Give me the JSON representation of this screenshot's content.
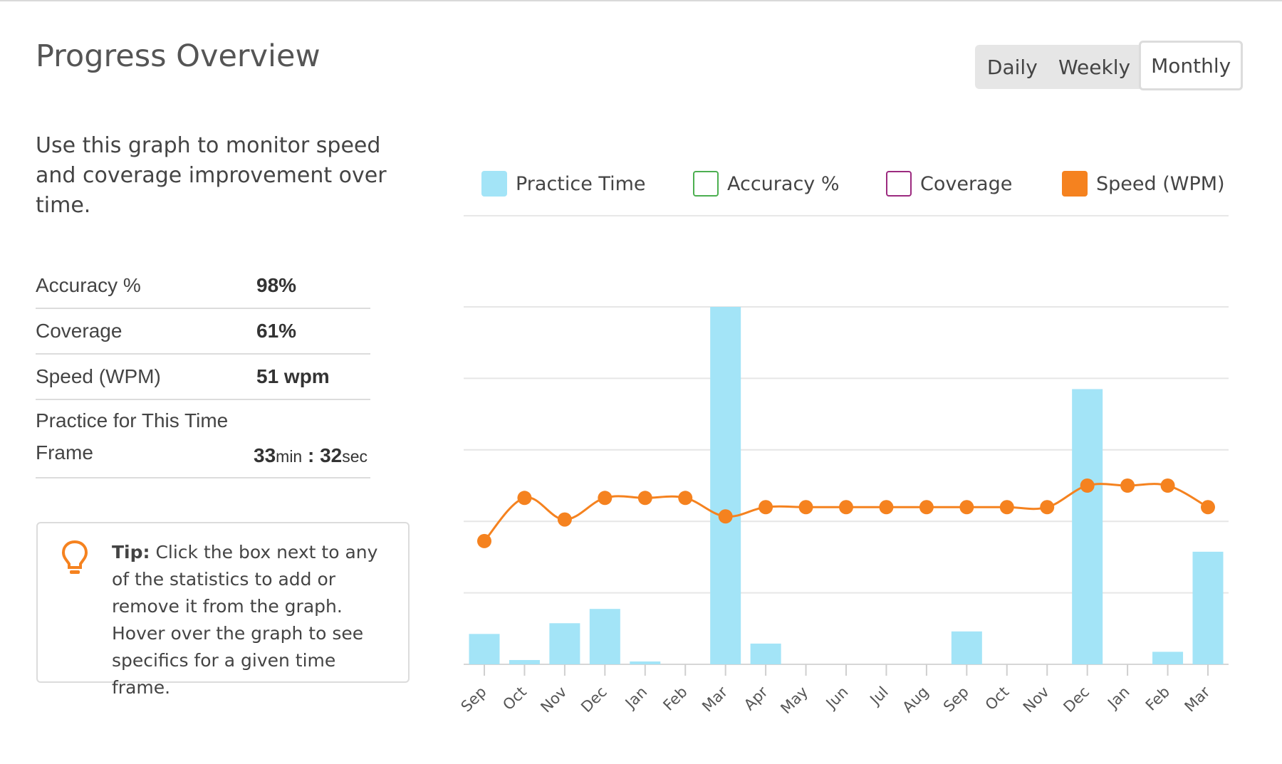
{
  "header": {
    "title": "Progress Overview"
  },
  "range_toggle": {
    "options": [
      "Daily",
      "Weekly",
      "Monthly"
    ],
    "selected": "Monthly"
  },
  "intro_text": "Use this graph to monitor speed and coverage improvement over time.",
  "stats": [
    {
      "label": "Accuracy %",
      "value": "98%"
    },
    {
      "label": "Coverage",
      "value": "61%"
    },
    {
      "label": "Speed (WPM)",
      "value": "51 wpm"
    }
  ],
  "practice": {
    "label": "Practice for This Time Frame",
    "minutes": "33",
    "min_unit": "min",
    "separator": " : ",
    "seconds": "32",
    "sec_unit": "sec"
  },
  "tip": {
    "strong": "Tip:",
    "text": " Click the box next to any of the statistics to add or remove it from the graph. Hover over the graph to see specifics for a given time frame.",
    "icon": "lightbulb-icon"
  },
  "legend": [
    {
      "label": "Practice Time",
      "color": "#a3e4f7",
      "checked": true,
      "fill": true
    },
    {
      "label": "Accuracy %",
      "color": "#4caf50",
      "checked": false,
      "fill": false
    },
    {
      "label": "Coverage",
      "color": "#9c2a7f",
      "checked": false,
      "fill": false
    },
    {
      "label": "Speed (WPM)",
      "color": "#f5821f",
      "checked": true,
      "fill": true
    }
  ],
  "chart_data": {
    "type": "bar+line",
    "categories": [
      "Sep",
      "Oct",
      "Nov",
      "Dec",
      "Jan",
      "Feb",
      "Mar",
      "Apr",
      "May",
      "Jun",
      "Jul",
      "Aug",
      "Sep",
      "Oct",
      "Nov",
      "Dec",
      "Jan",
      "Feb",
      "Mar"
    ],
    "series": [
      {
        "name": "Practice Time",
        "type": "bar",
        "color": "#a3e4f7",
        "values": [
          8.5,
          1.2,
          11.5,
          15.5,
          0.8,
          0,
          100,
          5.8,
          0,
          0,
          0,
          0,
          9.2,
          0,
          0,
          77,
          0,
          3.5,
          31.5
        ]
      },
      {
        "name": "Speed (WPM)",
        "type": "line",
        "color": "#f5821f",
        "values": [
          40,
          54,
          47,
          54,
          54,
          54,
          48,
          51,
          51,
          51,
          51,
          51,
          51,
          51,
          51,
          58,
          58,
          58,
          51
        ]
      }
    ],
    "gridlines": 5,
    "grid": true
  }
}
